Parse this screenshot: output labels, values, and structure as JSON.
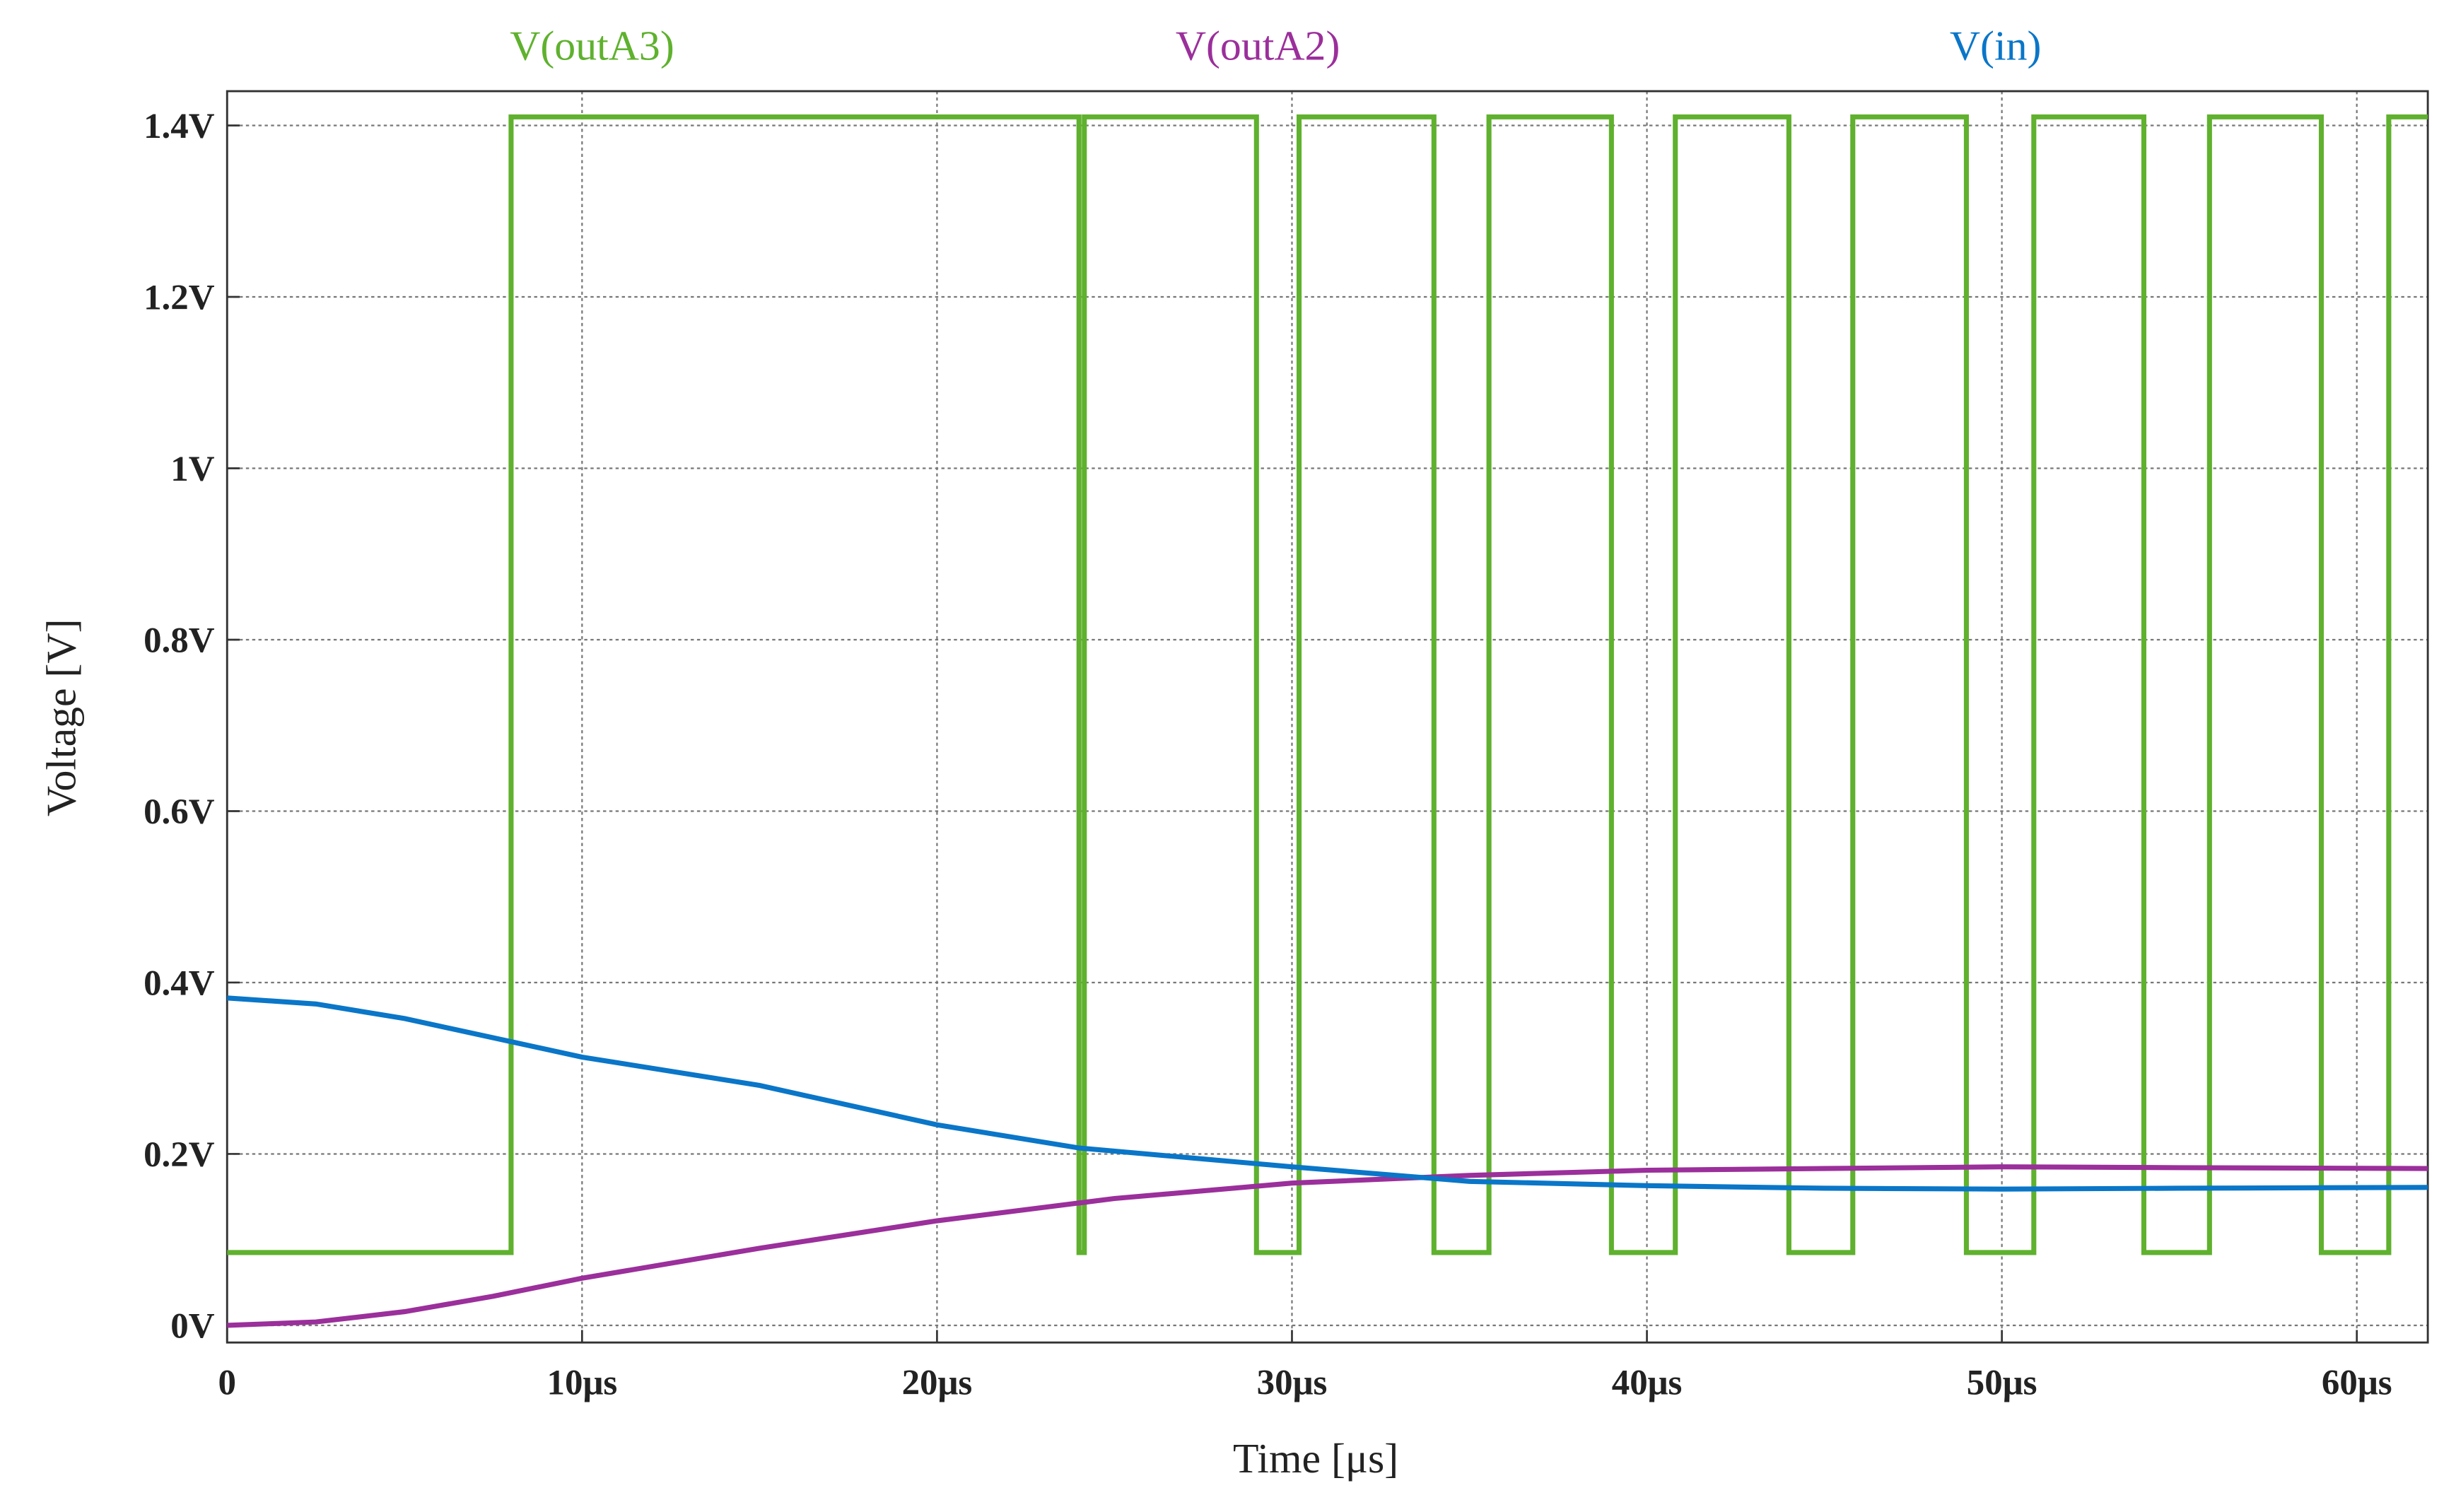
{
  "chart_data": {
    "type": "line",
    "x_label": "Time [μs]",
    "y_label": "Voltage [V]",
    "xlim": [
      0,
      62
    ],
    "ylim": [
      -0.02,
      1.44
    ],
    "xticks": [
      0,
      {
        "value": 10,
        "label": "10μs"
      },
      {
        "value": 20,
        "label": "20μs"
      },
      {
        "value": 30,
        "label": "30μs"
      },
      {
        "value": 40,
        "label": "40μs"
      },
      {
        "value": 50,
        "label": "50μs"
      },
      {
        "value": 60,
        "label": "60μs"
      }
    ],
    "yticks": [
      {
        "value": 0,
        "label": "0V"
      },
      {
        "value": 0.2,
        "label": "0.2V"
      },
      {
        "value": 0.4,
        "label": "0.4V"
      },
      {
        "value": 0.6,
        "label": "0.6V"
      },
      {
        "value": 0.8,
        "label": "0.8V"
      },
      {
        "value": 1,
        "label": "1V"
      },
      {
        "value": 1.2,
        "label": "1.2V"
      },
      {
        "value": 1.4,
        "label": "1.4V"
      }
    ],
    "grid": true,
    "series": [
      {
        "name": "V(outA3)",
        "color": "#5fb12e",
        "x": [
          0,
          8.0,
          8.0,
          24.0,
          24.0,
          24.15,
          24.15,
          29.0,
          29.0,
          30.2,
          30.2,
          34.0,
          34.0,
          35.55,
          35.55,
          39.0,
          39.0,
          40.8,
          40.8,
          44.0,
          44.0,
          45.8,
          45.8,
          49.0,
          49.0,
          50.9,
          50.9,
          54.0,
          54.0,
          55.85,
          55.85,
          59.0,
          59.0,
          60.9,
          60.9,
          62
        ],
        "values": [
          0.085,
          0.085,
          1.41,
          1.41,
          0.085,
          0.085,
          1.41,
          1.41,
          0.085,
          0.085,
          1.41,
          1.41,
          0.085,
          0.085,
          1.41,
          1.41,
          0.085,
          0.085,
          1.41,
          1.41,
          0.085,
          0.085,
          1.41,
          1.41,
          0.085,
          0.085,
          1.41,
          1.41,
          0.085,
          0.085,
          1.41,
          1.41,
          0.085,
          0.085,
          1.41,
          1.41
        ]
      },
      {
        "name": "V(outA2)",
        "color": "#9b2f9b",
        "x": [
          0,
          2.5,
          5,
          7.5,
          10,
          15,
          20,
          25,
          30,
          35,
          40,
          45,
          50,
          55,
          62
        ],
        "values": [
          0,
          0.004,
          0.016,
          0.034,
          0.055,
          0.09,
          0.122,
          0.148,
          0.166,
          0.175,
          0.181,
          0.183,
          0.185,
          0.184,
          0.183
        ]
      },
      {
        "name": "V(in)",
        "color": "#0a76c8",
        "x": [
          0,
          2.5,
          5,
          8,
          10,
          15,
          20,
          24,
          30,
          35,
          40,
          45,
          50,
          55,
          62
        ],
        "values": [
          0.382,
          0.375,
          0.358,
          0.331,
          0.313,
          0.28,
          0.234,
          0.207,
          0.185,
          0.168,
          0.163,
          0.16,
          0.159,
          0.16,
          0.161
        ]
      }
    ]
  }
}
